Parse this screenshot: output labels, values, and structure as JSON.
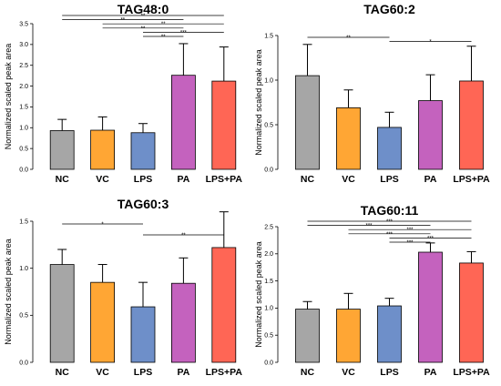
{
  "chart_data": [
    {
      "type": "bar",
      "title": "TAG48:0",
      "ylabel": "Normalized scaled peak area",
      "categories": [
        "NC",
        "VC",
        "LPS",
        "PA",
        "LPS+PA"
      ],
      "values": [
        0.93,
        0.94,
        0.88,
        2.26,
        2.12
      ],
      "error": [
        0.27,
        0.32,
        0.22,
        0.76,
        0.82
      ],
      "colors": [
        "#a6a6a6",
        "#ffa634",
        "#6e8fc9",
        "#c462be",
        "#ff6655"
      ],
      "ylim": [
        0,
        3.5
      ],
      "yticks": [
        "0.0",
        "0.5",
        "1.0",
        "1.5",
        "2.0",
        "2.5",
        "3.0",
        "3.5"
      ],
      "significance": [
        {
          "from": 0,
          "to": 4,
          "label": "**"
        },
        {
          "from": 0,
          "to": 3,
          "label": "**"
        },
        {
          "from": 1,
          "to": 4,
          "label": "**"
        },
        {
          "from": 1,
          "to": 3,
          "label": "**"
        },
        {
          "from": 2,
          "to": 4,
          "label": "***"
        },
        {
          "from": 2,
          "to": 3,
          "label": "**"
        }
      ]
    },
    {
      "type": "bar",
      "title": "TAG60:2",
      "ylabel": "Normalized scaled peak area",
      "categories": [
        "NC",
        "VC",
        "LPS",
        "PA",
        "LPS+PA"
      ],
      "values": [
        1.05,
        0.69,
        0.47,
        0.77,
        0.99
      ],
      "error": [
        0.35,
        0.2,
        0.17,
        0.29,
        0.39
      ],
      "colors": [
        "#a6a6a6",
        "#ffa634",
        "#6e8fc9",
        "#c462be",
        "#ff6655"
      ],
      "ylim": [
        0,
        1.5
      ],
      "yticks": [
        "0.0",
        "0.5",
        "1.0",
        "1.5"
      ],
      "significance": [
        {
          "from": 0,
          "to": 2,
          "label": "**"
        },
        {
          "from": 2,
          "to": 4,
          "label": "*"
        }
      ]
    },
    {
      "type": "bar",
      "title": "TAG60:3",
      "ylabel": "Normalized scaled peak area",
      "categories": [
        "NC",
        "VC",
        "LPS",
        "PA",
        "LPS+PA"
      ],
      "values": [
        1.04,
        0.85,
        0.59,
        0.84,
        1.22
      ],
      "error": [
        0.16,
        0.19,
        0.26,
        0.27,
        0.38
      ],
      "colors": [
        "#a6a6a6",
        "#ffa634",
        "#6e8fc9",
        "#c462be",
        "#ff6655"
      ],
      "ylim": [
        0,
        1.5
      ],
      "yticks": [
        "0.0",
        "0.5",
        "1.0",
        "1.5"
      ],
      "significance": [
        {
          "from": 0,
          "to": 2,
          "label": "*"
        },
        {
          "from": 2,
          "to": 4,
          "label": "**"
        }
      ]
    },
    {
      "type": "bar",
      "title": "TAG60:11",
      "ylabel": "Normalized scaled peak area",
      "categories": [
        "NC",
        "VC",
        "LPS",
        "PA",
        "LPS+PA"
      ],
      "values": [
        0.98,
        0.98,
        1.04,
        2.03,
        1.83
      ],
      "error": [
        0.14,
        0.29,
        0.14,
        0.17,
        0.21
      ],
      "colors": [
        "#a6a6a6",
        "#ffa634",
        "#6e8fc9",
        "#c462be",
        "#ff6655"
      ],
      "ylim": [
        0,
        2.5
      ],
      "yticks": [
        "0.0",
        "0.5",
        "1.0",
        "1.5",
        "2.0",
        "2.5"
      ],
      "significance": [
        {
          "from": 0,
          "to": 4,
          "label": "***"
        },
        {
          "from": 0,
          "to": 3,
          "label": "***"
        },
        {
          "from": 1,
          "to": 4,
          "label": "***"
        },
        {
          "from": 1,
          "to": 3,
          "label": "***"
        },
        {
          "from": 2,
          "to": 4,
          "label": "***"
        },
        {
          "from": 2,
          "to": 3,
          "label": "***"
        }
      ]
    }
  ]
}
